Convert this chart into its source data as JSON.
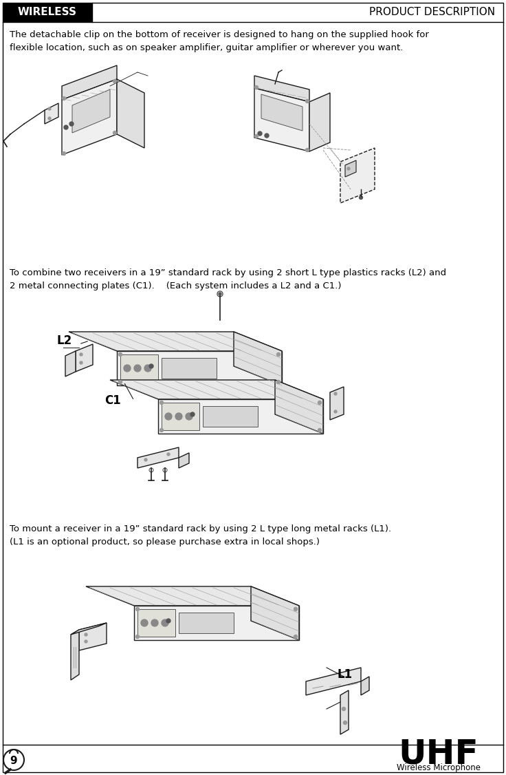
{
  "header_left": "WIRELESS",
  "header_right": "PRODUCT DESCRIPTION",
  "header_bg": "#000000",
  "header_text_color": "#ffffff",
  "header_right_text_color": "#000000",
  "border_color": "#000000",
  "bg_color": "#ffffff",
  "text_color": "#000000",
  "para1": "The detachable clip on the bottom of receiver is designed to hang on the supplied hook for\nflexible location, such as on speaker amplifier, guitar amplifier or wherever you want.",
  "para2": "To combine two receivers in a 19” standard rack by using 2 short L type plastics racks (L2) and\n2 metal connecting plates (C1).    (Each system includes a L2 and a C1.)",
  "para3": "To mount a receiver in a 19” standard rack by using 2 L type long metal racks (L1).\n(L1 is an optional product, so please purchase extra in local shops.)",
  "label_L1": "L1",
  "label_L2": "L2",
  "label_C1": "C1",
  "footer_page": "9",
  "footer_brand": "UHF",
  "footer_sub": "Wireless Microphone",
  "font_size_header": 11,
  "font_size_body": 9.5,
  "font_size_label": 11,
  "font_size_uhf": 36,
  "font_size_page": 11
}
